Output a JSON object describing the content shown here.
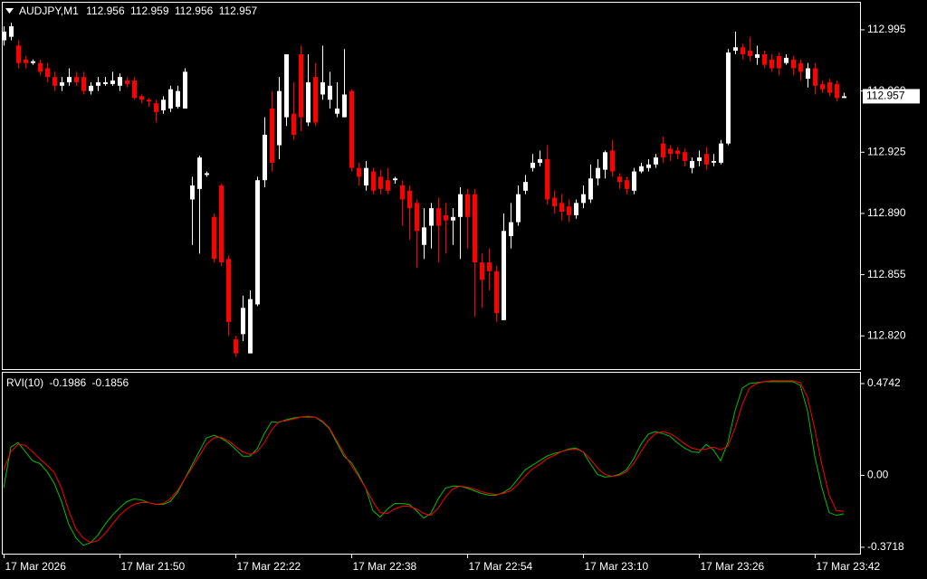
{
  "chart_data": [
    {
      "type": "candlestick",
      "symbol": "AUDJPY,M1",
      "up_color": "#ffffff",
      "down_color": "#ff0000",
      "ohlc": [
        [
          112.989,
          112.997,
          112.986,
          112.994
        ],
        [
          112.991,
          112.999,
          112.989,
          112.997
        ],
        [
          112.986,
          112.989,
          112.973,
          112.976
        ],
        [
          112.978,
          112.98,
          112.973,
          112.976
        ],
        [
          112.976,
          112.978,
          112.975,
          112.977
        ],
        [
          112.976,
          112.978,
          112.969,
          112.971
        ],
        [
          112.973,
          112.976,
          112.965,
          112.968
        ],
        [
          112.968,
          112.971,
          112.96,
          112.963
        ],
        [
          112.963,
          112.968,
          112.96,
          112.965
        ],
        [
          112.965,
          112.973,
          112.963,
          112.968
        ],
        [
          112.968,
          112.971,
          112.963,
          112.965
        ],
        [
          112.968,
          112.971,
          112.958,
          112.96
        ],
        [
          112.96,
          112.965,
          112.958,
          112.963
        ],
        [
          112.963,
          112.968,
          112.96,
          112.965
        ],
        [
          112.964,
          112.968,
          112.963,
          112.965
        ],
        [
          112.964,
          112.971,
          112.963,
          112.966
        ],
        [
          112.963,
          112.97,
          112.96,
          112.968
        ],
        [
          112.966,
          112.968,
          112.962,
          112.964
        ],
        [
          112.966,
          112.968,
          112.955,
          112.956
        ],
        [
          112.957,
          112.958,
          112.953,
          112.955
        ],
        [
          112.955,
          112.956,
          112.951,
          112.954
        ],
        [
          112.953,
          112.955,
          112.942,
          112.948
        ],
        [
          112.949,
          112.957,
          112.947,
          112.955
        ],
        [
          112.95,
          112.963,
          112.948,
          112.961
        ],
        [
          112.951,
          112.963,
          112.95,
          112.96
        ],
        [
          112.95,
          112.973,
          112.95,
          112.971
        ],
        [
          112.898,
          112.911,
          112.872,
          112.906
        ],
        [
          112.904,
          112.923,
          112.867,
          112.922
        ],
        [
          112.912,
          112.914,
          112.911,
          112.913
        ],
        [
          112.888,
          112.89,
          112.862,
          112.864
        ],
        [
          112.906,
          112.907,
          112.86,
          112.862
        ],
        [
          112.864,
          112.866,
          112.82,
          112.828
        ],
        [
          112.818,
          112.82,
          112.808,
          112.81
        ],
        [
          112.821,
          112.843,
          112.817,
          112.836
        ],
        [
          112.81,
          112.846,
          112.81,
          112.841
        ],
        [
          112.838,
          112.911,
          112.837,
          112.909
        ],
        [
          112.909,
          112.945,
          112.905,
          112.935
        ],
        [
          112.95,
          112.96,
          112.914,
          112.919
        ],
        [
          112.929,
          112.968,
          112.921,
          112.96
        ],
        [
          112.945,
          112.981,
          112.94,
          112.981
        ],
        [
          112.947,
          112.965,
          112.932,
          112.935
        ],
        [
          112.981,
          112.986,
          112.937,
          112.945
        ],
        [
          112.942,
          112.981,
          112.94,
          112.965
        ],
        [
          112.968,
          112.976,
          112.94,
          112.942
        ],
        [
          112.958,
          112.986,
          112.955,
          112.965
        ],
        [
          112.955,
          112.971,
          112.95,
          112.963
        ],
        [
          112.947,
          112.965,
          112.945,
          112.95
        ],
        [
          112.945,
          112.984,
          112.945,
          112.958
        ],
        [
          112.96,
          112.961,
          112.914,
          112.916
        ],
        [
          112.916,
          112.919,
          112.906,
          112.911
        ],
        [
          112.906,
          112.92,
          112.903,
          112.916
        ],
        [
          112.914,
          112.916,
          112.901,
          112.903
        ],
        [
          112.911,
          112.915,
          112.901,
          112.904
        ],
        [
          112.909,
          112.916,
          112.901,
          112.903
        ],
        [
          112.909,
          112.911,
          112.907,
          112.91
        ],
        [
          112.906,
          112.909,
          112.883,
          112.898
        ],
        [
          112.903,
          112.906,
          112.875,
          112.893
        ],
        [
          112.896,
          112.898,
          112.859,
          112.88
        ],
        [
          112.872,
          112.893,
          112.864,
          112.882
        ],
        [
          112.883,
          112.896,
          112.87,
          112.893
        ],
        [
          112.893,
          112.899,
          112.862,
          112.883
        ],
        [
          112.889,
          112.896,
          112.867,
          112.886
        ],
        [
          112.886,
          112.893,
          112.872,
          112.888
        ],
        [
          112.888,
          112.905,
          112.864,
          112.901
        ],
        [
          112.901,
          112.904,
          112.87,
          112.888
        ],
        [
          112.901,
          112.904,
          112.831,
          112.862
        ],
        [
          112.862,
          112.867,
          112.836,
          112.852
        ],
        [
          112.862,
          112.87,
          112.846,
          112.857
        ],
        [
          112.857,
          112.86,
          112.828,
          112.833
        ],
        [
          112.829,
          112.89,
          112.829,
          112.88
        ],
        [
          112.877,
          112.896,
          112.87,
          112.885
        ],
        [
          112.885,
          112.906,
          112.883,
          112.901
        ],
        [
          112.903,
          112.912,
          112.901,
          112.908
        ],
        [
          112.916,
          112.924,
          112.914,
          112.919
        ],
        [
          112.919,
          112.926,
          112.917,
          112.921
        ],
        [
          112.921,
          112.929,
          112.895,
          112.898
        ],
        [
          112.899,
          112.903,
          112.89,
          112.894
        ],
        [
          112.896,
          112.901,
          112.886,
          112.891
        ],
        [
          112.894,
          112.898,
          112.885,
          112.889
        ],
        [
          112.889,
          112.898,
          112.887,
          112.896
        ],
        [
          112.896,
          112.906,
          112.893,
          112.901
        ],
        [
          112.898,
          112.918,
          112.896,
          112.91
        ],
        [
          112.91,
          112.921,
          112.906,
          112.916
        ],
        [
          112.915,
          112.926,
          112.91,
          112.925
        ],
        [
          112.926,
          112.932,
          112.911,
          112.914
        ],
        [
          112.911,
          112.913,
          112.904,
          112.908
        ],
        [
          112.909,
          112.911,
          112.901,
          112.904
        ],
        [
          112.903,
          112.916,
          112.901,
          112.914
        ],
        [
          112.914,
          112.919,
          112.913,
          112.917
        ],
        [
          112.916,
          112.921,
          112.914,
          112.918
        ],
        [
          112.918,
          112.924,
          112.916,
          112.922
        ],
        [
          112.93,
          112.934,
          112.919,
          112.922
        ],
        [
          112.927,
          112.929,
          112.92,
          112.924
        ],
        [
          112.926,
          112.928,
          112.921,
          112.924
        ],
        [
          112.925,
          112.927,
          112.917,
          112.92
        ],
        [
          112.916,
          112.922,
          112.913,
          112.92
        ],
        [
          112.92,
          112.926,
          112.917,
          112.922
        ],
        [
          112.924,
          112.928,
          112.915,
          112.918
        ],
        [
          112.919,
          112.924,
          112.917,
          112.92
        ],
        [
          112.919,
          112.932,
          112.918,
          112.93
        ],
        [
          112.93,
          112.984,
          112.929,
          112.982
        ],
        [
          112.983,
          112.994,
          112.981,
          112.985
        ],
        [
          112.985,
          112.987,
          112.978,
          112.981
        ],
        [
          112.983,
          112.991,
          112.977,
          112.98
        ],
        [
          112.979,
          112.986,
          112.975,
          112.981
        ],
        [
          112.981,
          112.983,
          112.973,
          112.975
        ],
        [
          112.978,
          112.981,
          112.971,
          112.973
        ],
        [
          112.98,
          112.982,
          112.969,
          112.973
        ],
        [
          112.976,
          112.981,
          112.975,
          112.979
        ],
        [
          112.978,
          112.98,
          112.969,
          112.973
        ],
        [
          112.976,
          112.978,
          112.966,
          112.971
        ],
        [
          112.967,
          112.976,
          112.962,
          112.973
        ],
        [
          112.973,
          112.976,
          112.958,
          112.963
        ],
        [
          112.964,
          112.966,
          112.959,
          112.961
        ],
        [
          112.965,
          112.967,
          112.957,
          112.959
        ],
        [
          112.964,
          112.966,
          112.954,
          112.956
        ],
        [
          112.956,
          112.959,
          112.956,
          112.957
        ]
      ],
      "ylim": [
        112.801,
        113.011
      ],
      "yticks": [
        112.995,
        {
          "value": 112.96,
          "label": "112.960"
        },
        112.925,
        {
          "value": 112.89,
          "label": "112.890"
        },
        112.855,
        {
          "value": 112.82,
          "label": "112.820"
        }
      ],
      "xticks": [
        {
          "value": 0,
          "label": "17 Mar 2026"
        },
        {
          "value": 16,
          "label": "17 Mar 21:50"
        },
        {
          "value": 32,
          "label": "17 Mar 22:22"
        },
        {
          "value": 48,
          "label": "17 Mar 22:38"
        },
        {
          "value": 64,
          "label": "17 Mar 22:54"
        },
        {
          "value": 80,
          "label": "17 Mar 23:10"
        },
        {
          "value": 96,
          "label": "17 Mar 23:26"
        },
        {
          "value": 112,
          "label": "17 Mar 23:42"
        }
      ]
    },
    {
      "type": "line",
      "indicator": "RVI(10)",
      "series": [
        {
          "color": "#00c000",
          "values": [
            -0.066,
            0.146,
            0.169,
            0.122,
            0.075,
            0.061,
            0.019,
            -0.042,
            -0.136,
            -0.254,
            -0.324,
            -0.362,
            -0.348,
            -0.31,
            -0.254,
            -0.207,
            -0.169,
            -0.136,
            -0.122,
            -0.127,
            -0.141,
            -0.15,
            -0.15,
            -0.136,
            -0.089,
            -0.019,
            0.052,
            0.122,
            0.193,
            0.207,
            0.193,
            0.169,
            0.136,
            0.099,
            0.099,
            0.136,
            0.216,
            0.277,
            0.273,
            0.287,
            0.296,
            0.301,
            0.301,
            0.301,
            0.277,
            0.24,
            0.169,
            0.099,
            0.066,
            0.005,
            -0.066,
            -0.183,
            -0.216,
            -0.174,
            -0.146,
            -0.146,
            -0.15,
            -0.183,
            -0.221,
            -0.197,
            -0.122,
            -0.066,
            -0.056,
            -0.056,
            -0.066,
            -0.08,
            -0.094,
            -0.103,
            -0.103,
            -0.089,
            -0.066,
            -0.019,
            0.028,
            0.052,
            0.075,
            0.099,
            0.113,
            0.122,
            0.136,
            0.141,
            0.122,
            0.061,
            0.005,
            -0.009,
            -0.005,
            0.005,
            0.028,
            0.085,
            0.16,
            0.212,
            0.226,
            0.216,
            0.202,
            0.169,
            0.141,
            0.122,
            0.118,
            0.16,
            0.132,
            0.075,
            0.169,
            0.334,
            0.451,
            0.475,
            0.479,
            0.484,
            0.484,
            0.484,
            0.484,
            0.484,
            0.465,
            0.334,
            0.099,
            -0.066,
            -0.193,
            -0.207,
            -0.1986
          ]
        },
        {
          "color": "#ff0000",
          "values": [
            0.028,
            0.122,
            0.16,
            0.155,
            0.122,
            0.085,
            0.052,
            0.014,
            -0.066,
            -0.183,
            -0.277,
            -0.324,
            -0.348,
            -0.338,
            -0.301,
            -0.254,
            -0.207,
            -0.174,
            -0.15,
            -0.141,
            -0.141,
            -0.15,
            -0.146,
            -0.122,
            -0.08,
            -0.019,
            0.038,
            0.099,
            0.16,
            0.193,
            0.197,
            0.179,
            0.15,
            0.122,
            0.108,
            0.122,
            0.169,
            0.235,
            0.277,
            0.282,
            0.291,
            0.301,
            0.306,
            0.301,
            0.282,
            0.244,
            0.179,
            0.113,
            0.052,
            -0.005,
            -0.066,
            -0.136,
            -0.193,
            -0.197,
            -0.174,
            -0.16,
            -0.16,
            -0.174,
            -0.197,
            -0.207,
            -0.169,
            -0.113,
            -0.071,
            -0.056,
            -0.061,
            -0.071,
            -0.085,
            -0.094,
            -0.099,
            -0.094,
            -0.08,
            -0.047,
            -0.005,
            0.033,
            0.056,
            0.085,
            0.103,
            0.122,
            0.132,
            0.136,
            0.122,
            0.085,
            0.038,
            0.005,
            -0.005,
            0,
            0.019,
            0.061,
            0.122,
            0.179,
            0.216,
            0.226,
            0.216,
            0.193,
            0.164,
            0.141,
            0.132,
            0.136,
            0.146,
            0.132,
            0.15,
            0.244,
            0.367,
            0.451,
            0.475,
            0.484,
            0.489,
            0.489,
            0.489,
            0.489,
            0.479,
            0.404,
            0.24,
            0.052,
            -0.103,
            -0.183,
            -0.1856
          ]
        }
      ],
      "ylim": [
        -0.405,
        0.535
      ],
      "yticks": [
        0.4742,
        {
          "value": 0,
          "label": "0.00"
        },
        -0.3718
      ]
    }
  ]
}
